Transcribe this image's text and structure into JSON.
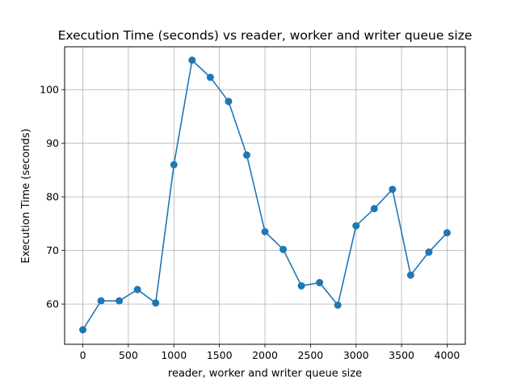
{
  "chart_data": {
    "type": "line",
    "title": "Execution Time (seconds) vs reader, worker and writer queue size",
    "xlabel": "reader, worker and writer queue size",
    "ylabel": "Execution Time (seconds)",
    "grid": true,
    "xlim": [
      -200,
      4200
    ],
    "ylim": [
      52.5,
      108
    ],
    "xticks": [
      0,
      500,
      1000,
      1500,
      2000,
      2500,
      3000,
      3500,
      4000
    ],
    "xtick_labels": [
      "0",
      "500",
      "1000",
      "1500",
      "2000",
      "2500",
      "3000",
      "3500",
      "4000"
    ],
    "yticks": [
      60,
      70,
      80,
      90,
      100
    ],
    "ytick_labels": [
      "60",
      "70",
      "80",
      "90",
      "100"
    ],
    "series": [
      {
        "color": "#1f77b4",
        "marker": "circle",
        "x": [
          0,
          200,
          400,
          600,
          800,
          1000,
          1200,
          1400,
          1600,
          1800,
          2000,
          2200,
          2400,
          2600,
          2800,
          3000,
          3200,
          3400,
          3600,
          3800,
          4000
        ],
        "y": [
          55.2,
          60.6,
          60.6,
          62.7,
          60.2,
          86.0,
          105.5,
          102.3,
          97.8,
          87.8,
          73.5,
          70.2,
          63.4,
          64.0,
          59.8,
          74.6,
          77.8,
          81.4,
          65.4,
          69.7,
          73.3
        ]
      }
    ]
  }
}
